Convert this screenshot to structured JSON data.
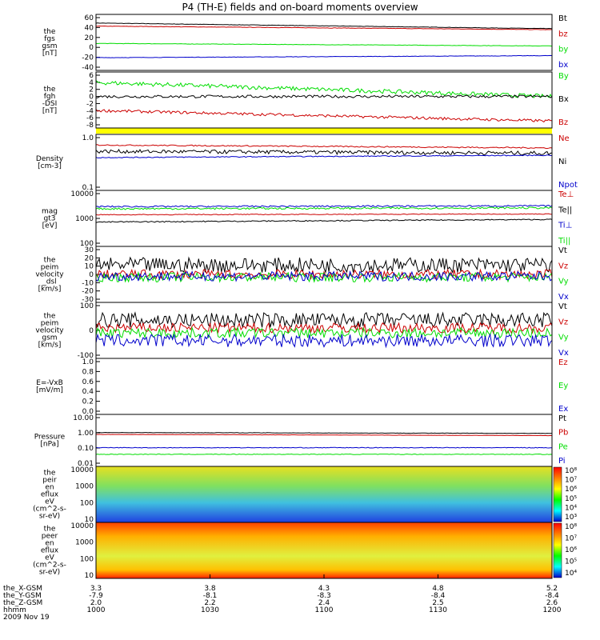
{
  "title": "P4 (TH-E) fields and on-board moments overview",
  "colors": {
    "black": "#000000",
    "red": "#cc0000",
    "green": "#00dd00",
    "blue": "#0000cc"
  },
  "chart_data": [
    {
      "type": "line",
      "name": "fgs",
      "ylabel": [
        "the",
        "fgs",
        "gsm",
        "[nT]"
      ],
      "yticks": [
        "60",
        "40",
        "20",
        "0",
        "-20",
        "-40"
      ],
      "ylim": [
        -45,
        65
      ],
      "series": [
        {
          "name": "Bt",
          "color": "black",
          "start": 48,
          "end": 37,
          "noise": 0.4
        },
        {
          "name": "bz",
          "color": "red",
          "start": 42,
          "end": 35,
          "noise": 0.4
        },
        {
          "name": "by",
          "color": "green",
          "start": 8,
          "end": 3,
          "noise": 0.4
        },
        {
          "name": "bx",
          "color": "blue",
          "start": -20,
          "end": -16,
          "noise": 0.4
        }
      ]
    },
    {
      "type": "line",
      "name": "fgm_dsl",
      "ylabel": [
        "the",
        "fgh",
        "-DSI",
        "[nT]"
      ],
      "yticks": [
        "6",
        "4",
        "2",
        "0",
        "-2",
        "-4",
        "-6",
        "-8"
      ],
      "ylim": [
        -9,
        7
      ],
      "series": [
        {
          "name": "By",
          "color": "green",
          "start": 4,
          "end": 0,
          "noise": 0.6
        },
        {
          "name": "Bx",
          "color": "black",
          "start": 0,
          "end": 0,
          "noise": 0.4
        },
        {
          "name": "Bz",
          "color": "red",
          "start": -4,
          "end": -7,
          "noise": 0.4
        }
      ]
    },
    {
      "type": "line",
      "name": "density",
      "ylabel": [
        "Density",
        "[cm-3]"
      ],
      "yticks": [
        "1.0",
        "0.1"
      ],
      "ylim_log": [
        0.1,
        1.3
      ],
      "series": [
        {
          "name": "Ne",
          "color": "red",
          "start": 0.8,
          "end": 0.7,
          "noise": 0.02
        },
        {
          "name": "Ni",
          "color": "black",
          "start": 0.6,
          "end": 0.55,
          "noise": 0.05
        },
        {
          "name": "Npot",
          "color": "blue",
          "start": 0.45,
          "end": 0.5,
          "noise": 0.01
        }
      ]
    },
    {
      "type": "line",
      "name": "temperature",
      "ylabel": [
        "mag",
        "gt3",
        "[eV]"
      ],
      "yticks": [
        "10000",
        "1000",
        "100"
      ],
      "ylim_log": [
        100,
        12000
      ],
      "series": [
        {
          "name": "Te⊥",
          "color": "red",
          "start": 1500,
          "end": 1600,
          "noise": 50
        },
        {
          "name": "Te||",
          "color": "black",
          "start": 800,
          "end": 1000,
          "noise": 40
        },
        {
          "name": "Ti⊥",
          "color": "blue",
          "start": 3000,
          "end": 3200,
          "noise": 200
        },
        {
          "name": "Ti||",
          "color": "green",
          "start": 2500,
          "end": 2700,
          "noise": 200
        }
      ]
    },
    {
      "type": "line",
      "name": "peim_velocity_dsl",
      "ylabel": [
        "the",
        "peim",
        "velocity",
        "_dsl",
        "[km/s]"
      ],
      "yticks": [
        "30",
        "20",
        "10",
        "0",
        "-10",
        "-20",
        "-30"
      ],
      "ylim": [
        -30,
        30
      ],
      "series": [
        {
          "name": "Vt",
          "color": "black",
          "start": 10,
          "end": 10,
          "noise": 8
        },
        {
          "name": "Vz",
          "color": "red",
          "start": 0,
          "end": 0,
          "noise": 5
        },
        {
          "name": "Vy",
          "color": "green",
          "start": -3,
          "end": -3,
          "noise": 5
        },
        {
          "name": "Vx",
          "color": "blue",
          "start": -2,
          "end": -2,
          "noise": 5
        }
      ]
    },
    {
      "type": "line",
      "name": "peim_velocity_gsm",
      "ylabel": [
        "the",
        "peim",
        "velocity",
        "gsm",
        "[km/s]"
      ],
      "yticks": [
        "100",
        "0",
        "-100"
      ],
      "ylim": [
        -110,
        110
      ],
      "series": [
        {
          "name": "Vt",
          "color": "black",
          "start": 40,
          "end": 40,
          "noise": 30
        },
        {
          "name": "Vz",
          "color": "red",
          "start": 10,
          "end": 10,
          "noise": 20
        },
        {
          "name": "Vy",
          "color": "green",
          "start": -10,
          "end": -10,
          "noise": 20
        },
        {
          "name": "Vx",
          "color": "blue",
          "start": -40,
          "end": -40,
          "noise": 25
        }
      ]
    },
    {
      "type": "line",
      "name": "efield",
      "ylabel": [
        "E=-VxB",
        "[mV/m]"
      ],
      "yticks": [
        "1.0",
        "0.8",
        "0.6",
        "0.4",
        "0.2",
        "0.0"
      ],
      "ylim": [
        0,
        1
      ],
      "series": [
        {
          "name": "Ez",
          "color": "red"
        },
        {
          "name": "Ey",
          "color": "green"
        },
        {
          "name": "Ex",
          "color": "blue"
        }
      ]
    },
    {
      "type": "line",
      "name": "pressure",
      "ylabel": [
        "Pressure",
        "[nPa]"
      ],
      "yticks": [
        "10.00",
        "1.00",
        "0.10",
        "0.01"
      ],
      "ylim_log": [
        0.01,
        10
      ],
      "series": [
        {
          "name": "Pt",
          "color": "black",
          "start": 0.9,
          "end": 0.8,
          "noise": 0.02
        },
        {
          "name": "Pb",
          "color": "red",
          "start": 0.7,
          "end": 0.6,
          "noise": 0.01
        },
        {
          "name": "Pe",
          "color": "green",
          "start": 0.05,
          "end": 0.05,
          "noise": 0.002
        },
        {
          "name": "Pi",
          "color": "blue",
          "start": 0.12,
          "end": 0.12,
          "noise": 0.005
        }
      ]
    },
    {
      "type": "heatmap",
      "name": "peir_spectrogram",
      "ylabel": [
        "the",
        "peir",
        "en",
        "eflux",
        "eV",
        "(cm^2-s-",
        "sr-eV)"
      ],
      "yticks": [
        "10000",
        "1000",
        "100",
        "10"
      ],
      "colorbar": [
        "10⁸",
        "10⁷",
        "10⁶",
        "10⁵",
        "10⁴",
        "10³"
      ]
    },
    {
      "type": "heatmap",
      "name": "peer_spectrogram",
      "ylabel": [
        "the",
        "peer",
        "en",
        "eflux",
        "eV",
        "(cm^2-s-",
        "sr-eV)"
      ],
      "yticks": [
        "10000",
        "1000",
        "100",
        "10"
      ],
      "colorbar": [
        "10⁸",
        "10⁷",
        "10⁶",
        "10⁵",
        "10⁴"
      ]
    }
  ],
  "x_axis": {
    "labels": [
      "the_X-GSM",
      "the_Y-GSM",
      "the_Z-GSM",
      "hhmm",
      "2009 Nov 19"
    ],
    "ticks": [
      {
        "x": "3.3",
        "y": "-7.9",
        "z": "2.0",
        "t": "1000"
      },
      {
        "x": "3.8",
        "y": "-8.1",
        "z": "2.2",
        "t": "1030"
      },
      {
        "x": "4.3",
        "y": "-8.3",
        "z": "2.4",
        "t": "1100"
      },
      {
        "x": "4.8",
        "y": "-8.4",
        "z": "2.5",
        "t": "1130"
      },
      {
        "x": "5.2",
        "y": "-8.4",
        "z": "2.6",
        "t": "1200"
      }
    ]
  }
}
